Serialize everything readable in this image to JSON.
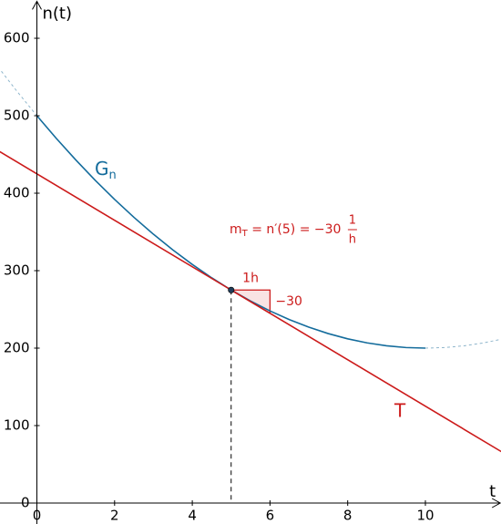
{
  "chart_data": {
    "type": "line",
    "x_label": "t",
    "y_label": "n(t)",
    "xlim": [
      -0.95,
      11.95
    ],
    "ylim": [
      -27,
      649
    ],
    "xticks": [
      0,
      2,
      4,
      6,
      8,
      10
    ],
    "yticks": [
      0,
      100,
      200,
      300,
      400,
      500,
      600
    ],
    "series": [
      {
        "name": "G",
        "subscript": "n",
        "color": "#146c9c",
        "style": "solid",
        "x": [
          0,
          0.5,
          1,
          1.5,
          2,
          2.5,
          3,
          3.5,
          4,
          4.5,
          5,
          5.5,
          6,
          6.5,
          7,
          7.5,
          8,
          8.5,
          9,
          9.5,
          10
        ],
        "values": [
          500,
          470.75,
          443,
          416.75,
          392,
          368.75,
          347,
          326.75,
          308,
          290.75,
          275,
          260.75,
          248,
          236.75,
          227,
          218.75,
          212,
          206.75,
          203,
          200.75,
          200
        ]
      },
      {
        "color": "#8fb6cc",
        "style": "dashed",
        "x": [
          -1,
          -0.5,
          0
        ],
        "values": [
          563,
          530.75,
          500
        ]
      },
      {
        "color": "#8fb6cc",
        "style": "dashed",
        "x": [
          10,
          10.5,
          11,
          11.5,
          12
        ],
        "values": [
          200,
          200.75,
          203,
          206.75,
          212
        ]
      },
      {
        "name": "T",
        "color": "#cc1a1a",
        "style": "solid",
        "x": [
          -1,
          12
        ],
        "values": [
          455,
          65
        ]
      }
    ],
    "point": {
      "x": 5,
      "y": 275,
      "color": "#1f3d5a"
    },
    "slope_triangle": {
      "values": [
        1,
        -30
      ],
      "value_labels": [
        "1h",
        "−30"
      ],
      "color": "#cc1a1a"
    },
    "annotation": {
      "m": "m",
      "sub": "T",
      "text": " = n′(5) = −30 ",
      "num": "1",
      "den": "h",
      "color": "#cc1a1a"
    }
  }
}
